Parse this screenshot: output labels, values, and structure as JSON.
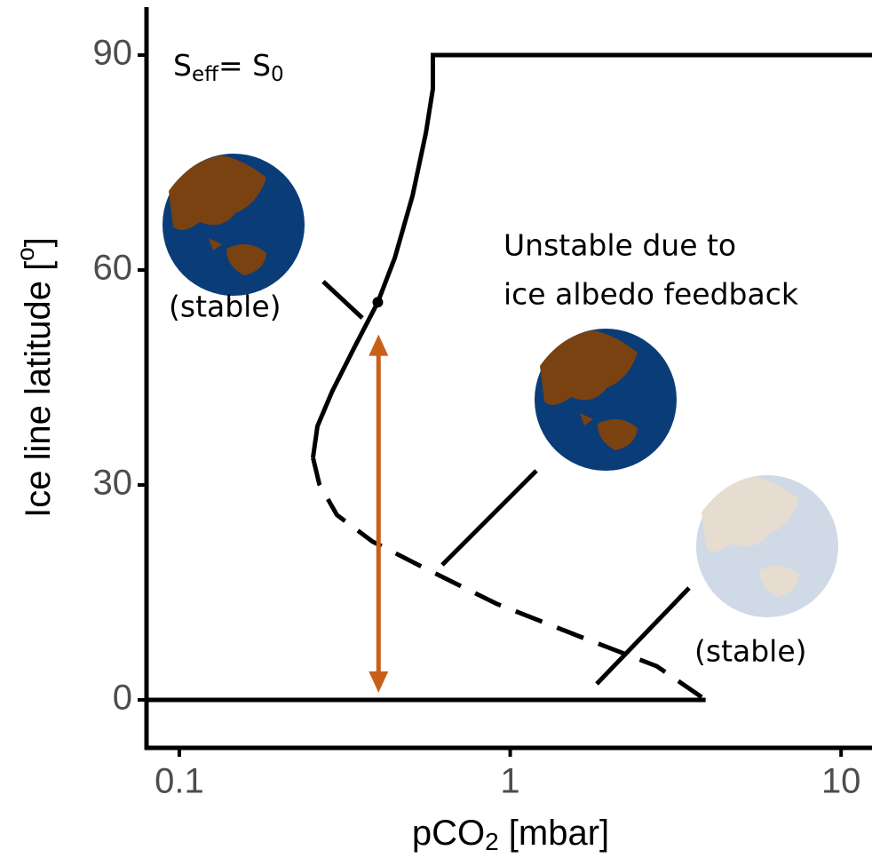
{
  "chart_data": {
    "type": "line",
    "xscale": "log",
    "xlim": [
      0.0796,
      12.4
    ],
    "ylim": [
      -6.7,
      96.7
    ],
    "xticks": [
      0.1,
      1,
      10
    ],
    "yticks": [
      0,
      30,
      60,
      90
    ],
    "xlabel": [
      "pCO",
      "2",
      " [mbar]"
    ],
    "ylabel": [
      "Ice line latitude [",
      "o",
      "]"
    ],
    "series": [
      {
        "style": "solid",
        "color": "#000000",
        "x": [
          12.4,
          0.584,
          0.584,
          0.556,
          0.507,
          0.448,
          0.398,
          0.339,
          0.29,
          0.2615,
          0.2535
        ],
        "values": [
          90,
          90,
          85.3,
          79.1,
          70.4,
          61.7,
          55.5,
          49.3,
          43.1,
          38.2,
          33.8
        ]
      },
      {
        "style": "dashed",
        "color": "#000000",
        "x": [
          0.2535,
          0.265,
          0.2996,
          0.3836,
          0.556,
          0.911,
          1.59,
          2.773,
          3.896
        ],
        "values": [
          33.8,
          30.1,
          25.8,
          22.1,
          18.3,
          13.4,
          9.0,
          4.7,
          0
        ]
      },
      {
        "style": "solid",
        "color": "#000000",
        "x": [
          0.0796,
          3.896
        ],
        "values": [
          0,
          0
        ]
      }
    ],
    "point": {
      "x": 0.398,
      "y": 55.5,
      "color": "#000000"
    },
    "arrow": {
      "x": 0.4,
      "y": [
        1,
        51
      ],
      "color": "#c8601a"
    },
    "annotations": {
      "seff": [
        "S",
        "eff",
        "= S",
        "0"
      ],
      "unstable": [
        "Unstable due to",
        "ice albedo feedback"
      ],
      "stable_left": "(stable)",
      "stable_right": "(stable)"
    }
  }
}
